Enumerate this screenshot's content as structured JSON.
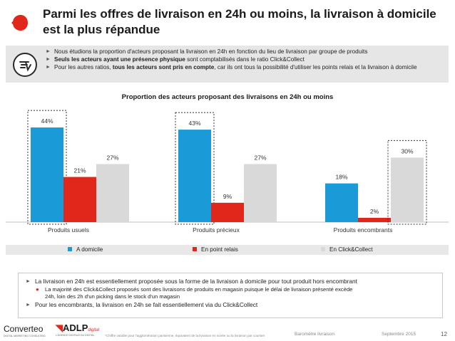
{
  "header": {
    "title": "Parmi les offres de livraison en 24h ou moins, la livraison à domicile est la plus répandue",
    "brand_color": "#e1261c"
  },
  "intro": {
    "icon": "delivery-icon",
    "bullets": [
      {
        "text": "Nous étudions la proportion d'acteurs proposant la livraison en 24h en fonction du lieu de livraison par groupe de produits"
      },
      {
        "bold": "Seuls les acteurs ayant une présence physique",
        "text": " sont comptabilisés dans le ratio Click&Collect"
      },
      {
        "pre": "Pour les autres ratios, ",
        "bold": "tous les acteurs sont pris en compte",
        "text": ", car ils ont tous la possibilité d'utiliser les points relais et la livraison à domicile"
      }
    ]
  },
  "chart_data": {
    "type": "bar",
    "title": "Proportion des acteurs proposant des livraisons en 24h ou moins",
    "categories": [
      "Produits usuels",
      "Produits précieux",
      "Produits encombrants"
    ],
    "series": [
      {
        "name": "A domicile",
        "values": [
          44,
          43,
          18
        ],
        "labels": [
          "44%",
          "43%",
          "18%"
        ],
        "color": "#1a9ad6"
      },
      {
        "name": "En point relais",
        "values": [
          21,
          9,
          2
        ],
        "labels": [
          "21%",
          "9%",
          "2%"
        ],
        "color": "#e1261c"
      },
      {
        "name": "En Click&Collect",
        "values": [
          27,
          27,
          30
        ],
        "labels": [
          "27%",
          "27%",
          "30%"
        ],
        "color": "#d9d9d9"
      }
    ],
    "highlighted": [
      {
        "category": "Produits usuels",
        "series": "A domicile"
      },
      {
        "category": "Produits précieux",
        "series": "A domicile"
      },
      {
        "category": "Produits encombrants",
        "series": "En Click&Collect"
      }
    ],
    "ylim": [
      0,
      48
    ],
    "grid": false,
    "legend_position": "bottom"
  },
  "conclusions": {
    "items": [
      {
        "level": 1,
        "text": "La livraison en 24h est essentiellement proposée sous la forme de la livraison à domicile pour tout produit hors encombrant"
      },
      {
        "level": 2,
        "line1": "La majorité des Click&Collect proposés sont des livraisons de produits en magasin puisque le délai de livraison présenté excède",
        "line2": "24h, loin des 2h d'un picking dans le stock d'un magasin"
      },
      {
        "level": 1,
        "text": "Pour les encombrants, la livraison en 24h se fait essentiellement via du Click&Collect"
      }
    ]
  },
  "footer": {
    "logo_left": "Converteo",
    "logo_left_tagline": "DIGITAL MARKETING CONSULTING",
    "logo_right": "ADLP",
    "logo_right_suffix": "digital",
    "logo_right_tagline": "L'AGENCE DIGITALE DU DIGITAL",
    "footnote": "*Chiffre valable pour l'agglomération parisienne, équivalent de la livraison en soirée ou la livraison par coursier",
    "barometer": "Baromètre livraison",
    "date": "Septembre 2015",
    "page": "12"
  }
}
